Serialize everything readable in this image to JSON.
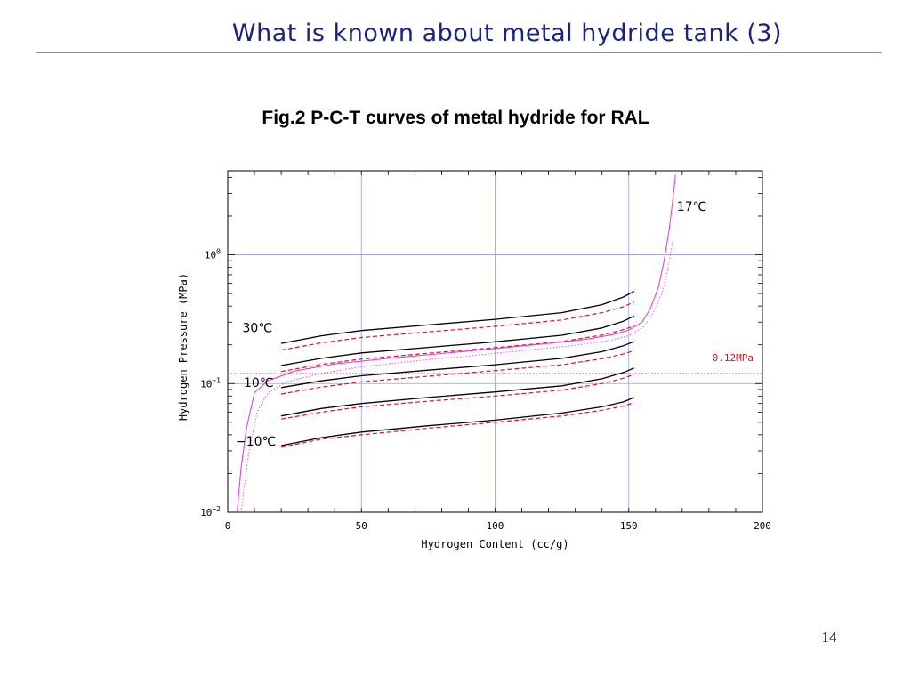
{
  "slide": {
    "title": "What is known about metal hydride tank (3)",
    "figure_caption": "Fig.2 P-C-T curves of metal hydride for RAL",
    "page_number": "14"
  },
  "colors": {
    "title": "#1a237e",
    "rule": "#6f93d6",
    "grid": "#9b9be0",
    "absorption": "#000000",
    "desorption": "#e0141e",
    "curve_17c": "#e040e0",
    "reference_line": "#e85a9a",
    "reference_text": "#e0141e"
  },
  "chart_data": {
    "type": "line",
    "xlabel": "Hydrogen Content (cc/g)",
    "ylabel": "Hydrogen Pressure (MPa)",
    "xlim": [
      0,
      200
    ],
    "ylim": [
      0.01,
      4.5
    ],
    "yscale": "log",
    "grid": true,
    "x_ticks": [
      {
        "value": 0,
        "label": "0"
      },
      {
        "value": 50,
        "label": "50"
      },
      {
        "value": 100,
        "label": "100"
      },
      {
        "value": 150,
        "label": "150"
      },
      {
        "value": 200,
        "label": "200"
      }
    ],
    "y_ticks": [
      {
        "value": 1,
        "base": "10",
        "exp": "0"
      },
      {
        "value": 0.1,
        "base": "10",
        "exp": "−1"
      },
      {
        "value": 0.01,
        "base": "10",
        "exp": "−2"
      }
    ],
    "reference_line": {
      "y": 0.12,
      "label": "0.12MPa"
    },
    "annotations": [
      {
        "text": "17℃",
        "x": 168,
        "y": 2.2
      },
      {
        "text": "30℃",
        "x": 5.5,
        "y": 0.25
      },
      {
        "text": "10℃",
        "x": 6,
        "y": 0.094
      },
      {
        "text": "−10℃",
        "x": 3,
        "y": 0.033
      }
    ],
    "series": [
      {
        "kind": "absorption",
        "x": [
          20,
          35,
          50,
          75,
          100,
          125,
          140,
          148,
          152
        ],
        "y": [
          0.205,
          0.235,
          0.258,
          0.285,
          0.315,
          0.355,
          0.41,
          0.47,
          0.52
        ]
      },
      {
        "kind": "desorption",
        "x": [
          20,
          35,
          50,
          75,
          100,
          125,
          140,
          148,
          152
        ],
        "y": [
          0.182,
          0.207,
          0.228,
          0.252,
          0.278,
          0.312,
          0.355,
          0.395,
          0.43
        ]
      },
      {
        "kind": "absorption",
        "x": [
          20,
          35,
          50,
          75,
          100,
          125,
          140,
          148,
          152
        ],
        "y": [
          0.138,
          0.157,
          0.173,
          0.191,
          0.211,
          0.237,
          0.27,
          0.305,
          0.335
        ]
      },
      {
        "kind": "desorption",
        "x": [
          20,
          35,
          50,
          75,
          100,
          125,
          140,
          148,
          152
        ],
        "y": [
          0.124,
          0.141,
          0.155,
          0.172,
          0.19,
          0.212,
          0.238,
          0.262,
          0.28
        ]
      },
      {
        "kind": "absorption",
        "x": [
          20,
          35,
          50,
          75,
          100,
          125,
          140,
          148,
          152
        ],
        "y": [
          0.093,
          0.105,
          0.115,
          0.127,
          0.14,
          0.157,
          0.177,
          0.197,
          0.212
        ]
      },
      {
        "kind": "desorption",
        "x": [
          20,
          35,
          50,
          75,
          100,
          125,
          140,
          148,
          152
        ],
        "y": [
          0.083,
          0.094,
          0.103,
          0.114,
          0.126,
          0.14,
          0.156,
          0.17,
          0.18
        ]
      },
      {
        "kind": "absorption",
        "x": [
          20,
          35,
          50,
          75,
          100,
          125,
          140,
          148,
          152
        ],
        "y": [
          0.056,
          0.064,
          0.07,
          0.078,
          0.086,
          0.096,
          0.109,
          0.122,
          0.132
        ]
      },
      {
        "kind": "desorption",
        "x": [
          20,
          35,
          50,
          75,
          100,
          125,
          140,
          148,
          152
        ],
        "y": [
          0.053,
          0.06,
          0.066,
          0.073,
          0.08,
          0.089,
          0.1,
          0.11,
          0.118
        ]
      },
      {
        "kind": "absorption",
        "x": [
          20,
          35,
          50,
          75,
          100,
          125,
          140,
          148,
          152
        ],
        "y": [
          0.033,
          0.038,
          0.042,
          0.047,
          0.052,
          0.059,
          0.066,
          0.072,
          0.078
        ]
      },
      {
        "kind": "desorption",
        "x": [
          20,
          35,
          50,
          75,
          100,
          125,
          140,
          148,
          152
        ],
        "y": [
          0.032,
          0.037,
          0.04,
          0.045,
          0.05,
          0.056,
          0.062,
          0.067,
          0.071
        ]
      },
      {
        "kind": "pct-17c",
        "x": [
          3.5,
          4,
          5,
          7,
          10,
          15,
          25,
          40,
          60,
          80,
          100,
          120,
          135,
          145,
          150,
          155,
          158,
          161,
          163,
          165,
          166.5,
          167.5
        ],
        "y": [
          0.01,
          0.013,
          0.022,
          0.045,
          0.085,
          0.105,
          0.125,
          0.142,
          0.157,
          0.171,
          0.187,
          0.205,
          0.222,
          0.242,
          0.26,
          0.3,
          0.38,
          0.55,
          0.85,
          1.5,
          2.7,
          4.2
        ]
      },
      {
        "kind": "pct-17c-dotted",
        "x": [
          5,
          6,
          8,
          11,
          15,
          22,
          35,
          50,
          70,
          90,
          110,
          130,
          142,
          150,
          156,
          160,
          163,
          165,
          166.5
        ],
        "y": [
          0.01,
          0.015,
          0.03,
          0.06,
          0.085,
          0.103,
          0.12,
          0.135,
          0.15,
          0.164,
          0.18,
          0.198,
          0.215,
          0.235,
          0.28,
          0.38,
          0.55,
          0.85,
          1.3
        ]
      }
    ]
  }
}
